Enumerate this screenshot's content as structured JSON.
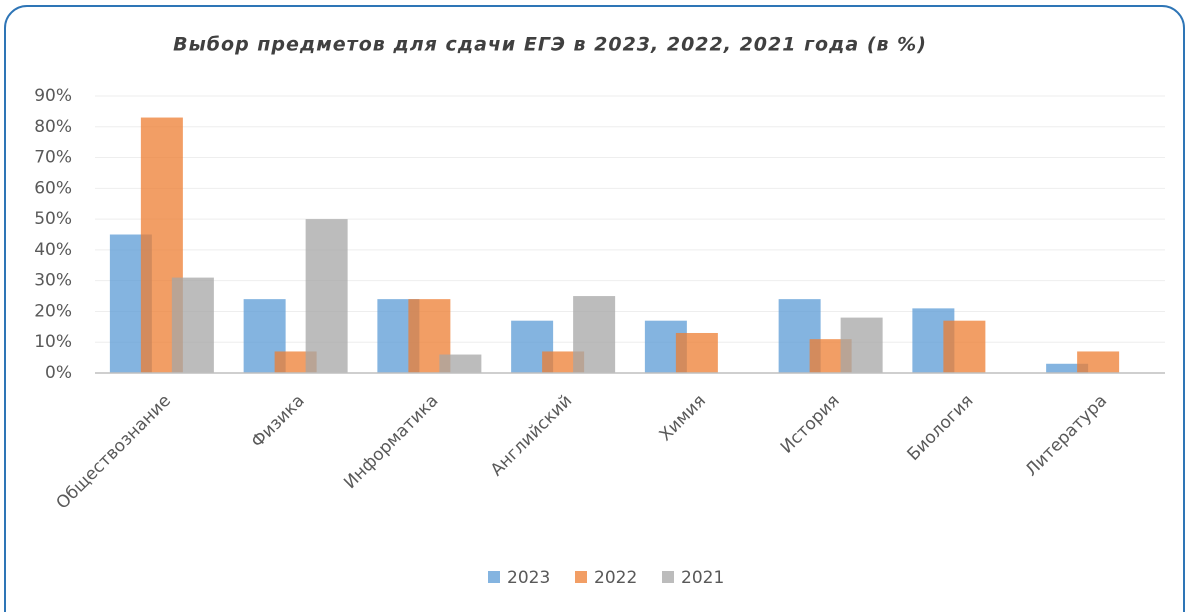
{
  "chart_data": {
    "type": "bar",
    "title": "Выбор предметов для сдачи ЕГЭ в 2023, 2022, 2021 года (в %)",
    "categories": [
      "Обществознание",
      "Физика",
      "Информатика",
      "Английский",
      "Химия",
      "История",
      "Биология",
      "Литература"
    ],
    "series": [
      {
        "name": "2023",
        "color": "#5b9bd5",
        "values": [
          45,
          24,
          24,
          17,
          17,
          24,
          21,
          3
        ]
      },
      {
        "name": "2022",
        "color": "#ed7d31",
        "values": [
          83,
          7,
          24,
          7,
          13,
          11,
          17,
          7
        ]
      },
      {
        "name": "2021",
        "color": "#a5a5a5",
        "values": [
          31,
          50,
          6,
          25,
          0,
          18,
          0,
          0
        ]
      }
    ],
    "ylim": [
      0,
      90
    ],
    "yticks": [
      {
        "value": 0,
        "label": "0%"
      },
      {
        "value": 10,
        "label": "10%"
      },
      {
        "value": 20,
        "label": "20%"
      },
      {
        "value": 30,
        "label": "30%"
      },
      {
        "value": 40,
        "label": "40%"
      },
      {
        "value": 50,
        "label": "50%"
      },
      {
        "value": 60,
        "label": "60%"
      },
      {
        "value": 70,
        "label": "70%"
      },
      {
        "value": 80,
        "label": "80%"
      },
      {
        "value": 90,
        "label": "90%"
      }
    ],
    "grid": true,
    "legend": "bottom"
  }
}
